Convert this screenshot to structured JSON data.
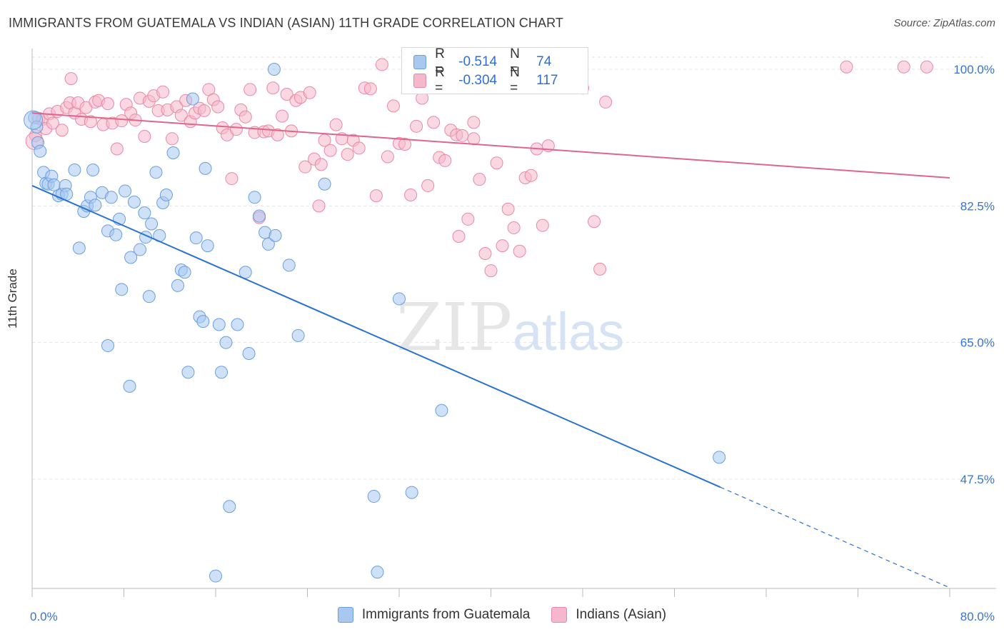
{
  "title": "IMMIGRANTS FROM GUATEMALA VS INDIAN (ASIAN) 11TH GRADE CORRELATION CHART",
  "source": "Source: ZipAtlas.com",
  "watermark": {
    "zip": "ZIP",
    "atlas": "atlas"
  },
  "legend": {
    "r_label": "R =",
    "n_label": "N =",
    "rows": [
      {
        "r": "-0.514",
        "n": "74",
        "color": "#a8c8f0"
      },
      {
        "r": "-0.304",
        "n": "117",
        "color": "#f5b8cb"
      }
    ]
  },
  "colors": {
    "blue_fill": "#a8c8f0",
    "blue_stroke": "#6a9ee0",
    "blue_line": "#2a72d0",
    "pink_fill": "#f5b8cb",
    "pink_stroke": "#e888a8",
    "pink_line": "#e0648c",
    "tick_label": "#3a74c8"
  },
  "chart_data": {
    "type": "scatter",
    "title": "IMMIGRANTS FROM GUATEMALA VS INDIAN (ASIAN) 11TH GRADE CORRELATION CHART",
    "xlabel": "",
    "ylabel": "11th Grade",
    "xlim": [
      0,
      80
    ],
    "ylim": [
      33,
      102
    ],
    "x_tick_labels": [
      "0.0%",
      "80.0%"
    ],
    "y_ticks": [
      47.5,
      65.0,
      82.5,
      100.0
    ],
    "y_tick_labels": [
      "47.5%",
      "65.0%",
      "82.5%",
      "100.0%"
    ],
    "grid": true,
    "legend_position": "bottom",
    "series": [
      {
        "name": "Immigrants from Guatemala",
        "trend": {
          "x0": 0.0,
          "y0": 85.1,
          "x1": 80.0,
          "y1": 33.6,
          "solid_until": 60.0
        },
        "points": [
          [
            0.2,
            93.8
          ],
          [
            0.4,
            92.6
          ],
          [
            0.5,
            90.6
          ],
          [
            0.7,
            89.5
          ],
          [
            1.0,
            86.8
          ],
          [
            1.2,
            85.4
          ],
          [
            1.4,
            85.3
          ],
          [
            1.7,
            86.3
          ],
          [
            1.9,
            85.2
          ],
          [
            2.3,
            83.8
          ],
          [
            2.6,
            84.0
          ],
          [
            2.9,
            85.1
          ],
          [
            3.0,
            84.0
          ],
          [
            3.7,
            87.1
          ],
          [
            4.5,
            81.8
          ],
          [
            4.8,
            82.5
          ],
          [
            5.1,
            83.6
          ],
          [
            5.3,
            87.1
          ],
          [
            5.5,
            82.6
          ],
          [
            6.1,
            84.2
          ],
          [
            6.6,
            79.3
          ],
          [
            6.9,
            83.6
          ],
          [
            7.3,
            78.8
          ],
          [
            7.6,
            80.8
          ],
          [
            8.1,
            84.4
          ],
          [
            8.6,
            75.9
          ],
          [
            8.9,
            83.0
          ],
          [
            9.4,
            76.9
          ],
          [
            9.8,
            81.6
          ],
          [
            9.9,
            78.5
          ],
          [
            10.4,
            80.2
          ],
          [
            10.8,
            86.8
          ],
          [
            11.1,
            78.7
          ],
          [
            11.4,
            82.9
          ],
          [
            11.7,
            83.9
          ],
          [
            12.3,
            89.3
          ],
          [
            12.7,
            72.3
          ],
          [
            13.0,
            74.3
          ],
          [
            13.3,
            74.0
          ],
          [
            14.0,
            96.2
          ],
          [
            14.3,
            78.4
          ],
          [
            14.6,
            68.3
          ],
          [
            14.9,
            67.7
          ],
          [
            15.1,
            87.3
          ],
          [
            15.3,
            77.4
          ],
          [
            16.3,
            67.3
          ],
          [
            16.5,
            61.2
          ],
          [
            16.9,
            65.0
          ],
          [
            17.2,
            44.0
          ],
          [
            17.9,
            67.3
          ],
          [
            18.6,
            74.0
          ],
          [
            18.9,
            63.6
          ],
          [
            19.4,
            83.6
          ],
          [
            19.8,
            81.2
          ],
          [
            20.3,
            79.1
          ],
          [
            20.6,
            77.6
          ],
          [
            21.2,
            78.7
          ],
          [
            22.4,
            74.9
          ],
          [
            23.2,
            65.9
          ],
          [
            25.5,
            85.3
          ],
          [
            21.1,
            100.0
          ],
          [
            6.6,
            64.6
          ],
          [
            7.8,
            71.8
          ],
          [
            8.5,
            59.4
          ],
          [
            10.2,
            70.9
          ],
          [
            13.6,
            61.2
          ],
          [
            16.0,
            35.1
          ],
          [
            29.8,
            45.3
          ],
          [
            30.1,
            35.6
          ],
          [
            32.0,
            70.6
          ],
          [
            33.1,
            45.8
          ],
          [
            35.7,
            56.3
          ],
          [
            59.9,
            50.3
          ],
          [
            4.1,
            77.1
          ]
        ]
      },
      {
        "name": "Indians (Asian)",
        "trend": {
          "x0": 0.0,
          "y0": 94.4,
          "x1": 80.0,
          "y1": 86.1
        },
        "points": [
          [
            0.3,
            91.5
          ],
          [
            0.6,
            93.7
          ],
          [
            0.9,
            93.6
          ],
          [
            1.2,
            92.4
          ],
          [
            1.5,
            94.3
          ],
          [
            1.8,
            93.1
          ],
          [
            2.2,
            94.6
          ],
          [
            2.6,
            92.2
          ],
          [
            3.0,
            95.1
          ],
          [
            3.3,
            95.7
          ],
          [
            3.7,
            94.4
          ],
          [
            4.0,
            95.7
          ],
          [
            4.3,
            93.6
          ],
          [
            4.7,
            95.1
          ],
          [
            5.1,
            93.3
          ],
          [
            5.5,
            95.8
          ],
          [
            5.8,
            96.0
          ],
          [
            6.2,
            92.9
          ],
          [
            6.6,
            95.6
          ],
          [
            7.0,
            93.1
          ],
          [
            7.4,
            89.8
          ],
          [
            7.8,
            93.4
          ],
          [
            8.2,
            95.5
          ],
          [
            8.6,
            94.4
          ],
          [
            9.0,
            93.5
          ],
          [
            9.4,
            96.3
          ],
          [
            9.8,
            91.4
          ],
          [
            10.2,
            95.9
          ],
          [
            10.6,
            96.6
          ],
          [
            11.0,
            94.7
          ],
          [
            11.4,
            97.1
          ],
          [
            11.8,
            94.8
          ],
          [
            12.2,
            91.1
          ],
          [
            12.6,
            95.2
          ],
          [
            13.0,
            94.1
          ],
          [
            13.4,
            96.0
          ],
          [
            13.8,
            93.3
          ],
          [
            14.2,
            94.4
          ],
          [
            14.6,
            95.0
          ],
          [
            15.0,
            94.7
          ],
          [
            15.4,
            97.4
          ],
          [
            15.8,
            96.1
          ],
          [
            16.2,
            95.2
          ],
          [
            16.6,
            92.5
          ],
          [
            17.0,
            91.6
          ],
          [
            17.4,
            86.0
          ],
          [
            17.8,
            92.3
          ],
          [
            18.2,
            94.8
          ],
          [
            18.6,
            93.9
          ],
          [
            19.0,
            97.4
          ],
          [
            19.4,
            91.9
          ],
          [
            19.8,
            81.0
          ],
          [
            20.2,
            92.0
          ],
          [
            20.6,
            92.1
          ],
          [
            21.0,
            97.6
          ],
          [
            21.4,
            91.6
          ],
          [
            21.8,
            94.0
          ],
          [
            22.2,
            96.8
          ],
          [
            22.6,
            92.1
          ],
          [
            23.0,
            96.0
          ],
          [
            23.4,
            96.4
          ],
          [
            23.8,
            87.5
          ],
          [
            24.2,
            97.0
          ],
          [
            24.6,
            88.5
          ],
          [
            25.0,
            82.5
          ],
          [
            25.5,
            90.9
          ],
          [
            26.0,
            89.6
          ],
          [
            26.5,
            92.9
          ],
          [
            27.0,
            91.1
          ],
          [
            27.5,
            89.1
          ],
          [
            28.0,
            90.9
          ],
          [
            28.5,
            89.9
          ],
          [
            29.0,
            97.6
          ],
          [
            29.5,
            97.5
          ],
          [
            30.0,
            83.8
          ],
          [
            30.5,
            100.6
          ],
          [
            31.0,
            88.8
          ],
          [
            31.5,
            95.3
          ],
          [
            32.0,
            90.5
          ],
          [
            32.5,
            90.4
          ],
          [
            33.0,
            83.9
          ],
          [
            33.5,
            92.7
          ],
          [
            34.0,
            96.3
          ],
          [
            34.5,
            85.1
          ],
          [
            35.0,
            93.2
          ],
          [
            35.5,
            88.7
          ],
          [
            36.0,
            88.3
          ],
          [
            36.5,
            92.2
          ],
          [
            37.0,
            91.6
          ],
          [
            37.5,
            91.5
          ],
          [
            38.0,
            80.8
          ],
          [
            38.5,
            93.2
          ],
          [
            39.0,
            85.9
          ],
          [
            39.5,
            76.4
          ],
          [
            40.0,
            74.2
          ],
          [
            40.5,
            88.0
          ],
          [
            41.0,
            77.4
          ],
          [
            41.5,
            82.1
          ],
          [
            42.0,
            79.7
          ],
          [
            42.5,
            76.7
          ],
          [
            43.0,
            86.1
          ],
          [
            43.5,
            86.4
          ],
          [
            44.0,
            89.8
          ],
          [
            44.5,
            80.0
          ],
          [
            45.0,
            90.2
          ],
          [
            48.0,
            97.6
          ],
          [
            49.0,
            80.5
          ],
          [
            49.5,
            74.4
          ],
          [
            50.0,
            95.8
          ],
          [
            71.0,
            100.3
          ],
          [
            76.0,
            100.3
          ],
          [
            78.0,
            100.3
          ],
          [
            25.2,
            87.8
          ],
          [
            37.2,
            78.6
          ],
          [
            38.5,
            91.1
          ],
          [
            46.9,
            100.3
          ],
          [
            3.4,
            98.8
          ]
        ]
      }
    ]
  },
  "bottom_legend": [
    {
      "label": "Immigrants from Guatemala",
      "color": "#a8c8f0"
    },
    {
      "label": "Indians (Asian)",
      "color": "#f5b8cb"
    }
  ]
}
